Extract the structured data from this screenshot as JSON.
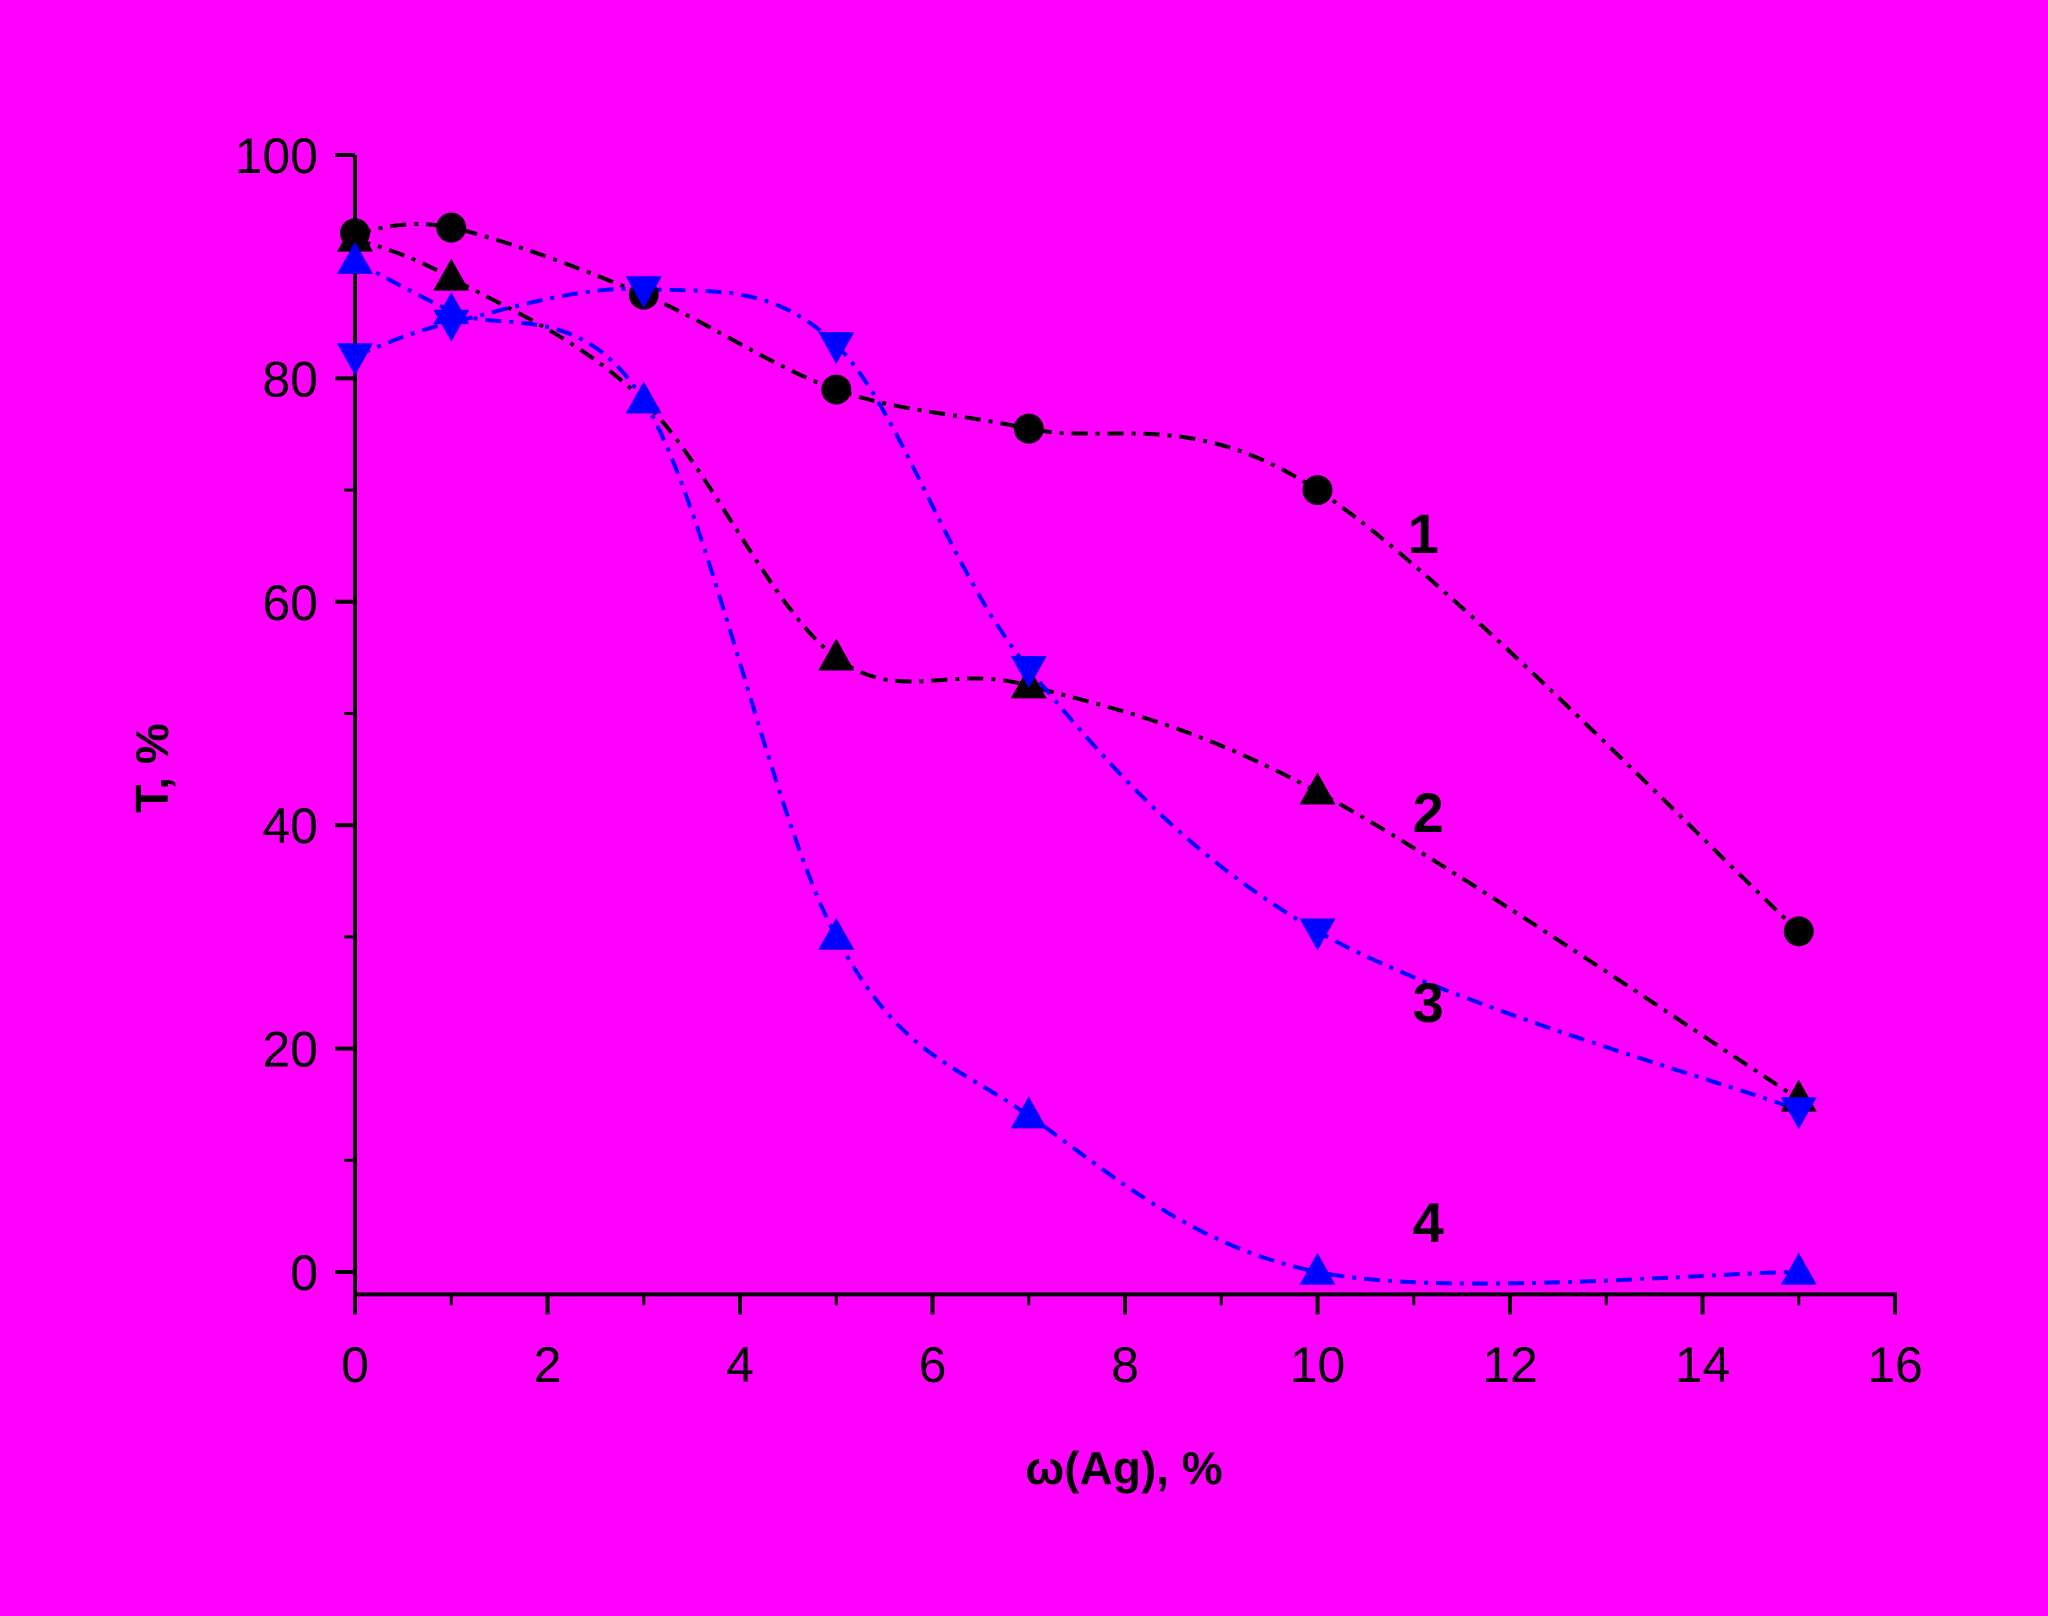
{
  "chart_data": {
    "type": "line",
    "xlabel": "ω(Ag), %",
    "ylabel": "T, %",
    "xlim": [
      0,
      16
    ],
    "ylim": [
      -2,
      100
    ],
    "xticks": [
      0,
      2,
      4,
      6,
      8,
      10,
      12,
      14,
      16
    ],
    "yticks": [
      0,
      20,
      40,
      60,
      80,
      100
    ],
    "grid": false,
    "background": "#FF00FF",
    "series": [
      {
        "name": "1",
        "color": "#000000",
        "marker": "circle",
        "x": [
          0,
          1,
          3,
          5,
          7,
          10,
          15
        ],
        "y": [
          93,
          93.5,
          87.5,
          79,
          75.5,
          70,
          30.5
        ]
      },
      {
        "name": "2",
        "color": "#000000",
        "marker": "triangle-up",
        "x": [
          0,
          1,
          3,
          5,
          7,
          10,
          15
        ],
        "y": [
          92.5,
          89,
          78,
          55,
          52.5,
          43,
          15.5
        ]
      },
      {
        "name": "3",
        "color": "#0000FF",
        "marker": "triangle-down",
        "x": [
          0,
          1,
          3,
          5,
          7,
          10,
          15
        ],
        "y": [
          82,
          85,
          88,
          83,
          54,
          30.5,
          14.5
        ]
      },
      {
        "name": "4",
        "color": "#0000FF",
        "marker": "triangle-up",
        "x": [
          0,
          1,
          3,
          5,
          7,
          10,
          15
        ],
        "y": [
          90.5,
          86,
          78,
          30,
          14,
          0,
          0
        ]
      }
    ],
    "annotations": [
      {
        "text": "1",
        "x": 11.1,
        "y": 66
      },
      {
        "text": "2",
        "x": 11.15,
        "y": 41
      },
      {
        "text": "3",
        "x": 11.15,
        "y": 24
      },
      {
        "text": "4",
        "x": 11.15,
        "y": 4.3
      }
    ]
  }
}
